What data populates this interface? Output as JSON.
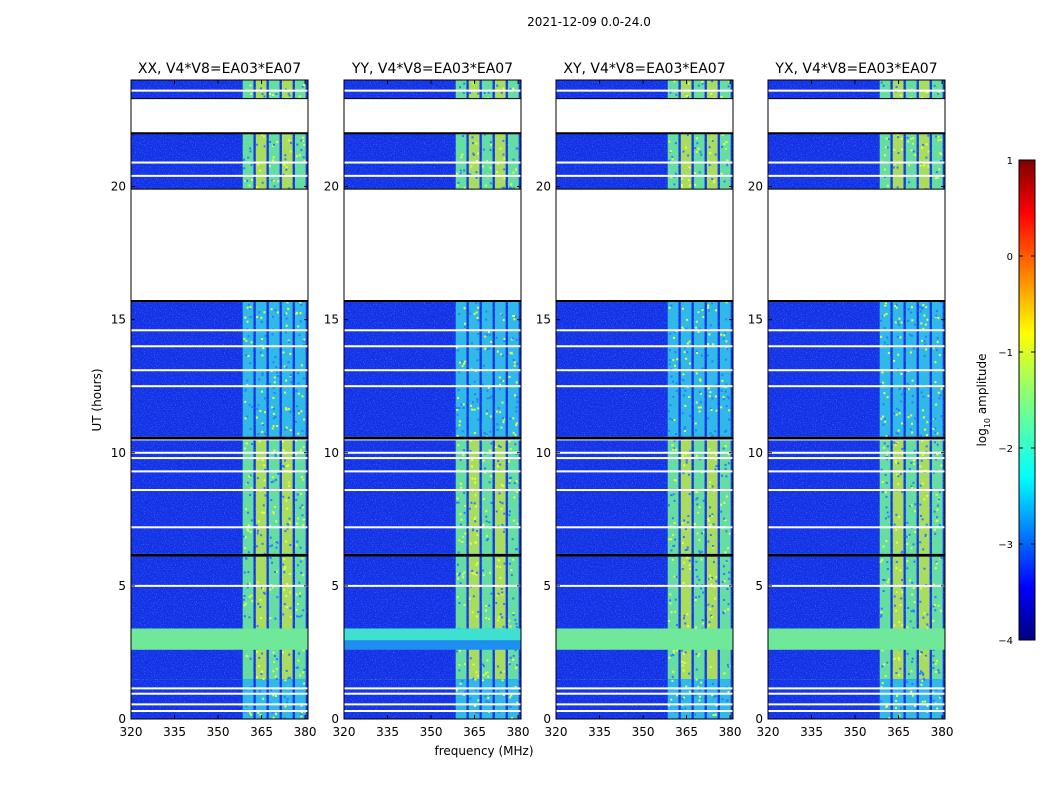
{
  "figure": {
    "suptitle": "2021-12-09 0.0-24.0"
  },
  "chart_data": {
    "type": "heatmap",
    "title": "2021-12-09 0.0-24.0",
    "xlabel": "frequency (MHz)",
    "ylabel": "UT (hours)",
    "xlim": [
      320,
      381
    ],
    "ylim": [
      0,
      24
    ],
    "x_ticks": [
      320,
      335,
      350,
      365,
      380
    ],
    "y_ticks": [
      0,
      5,
      10,
      15,
      20
    ],
    "x_tick_labels": [
      "320",
      "335",
      "350",
      "365",
      "380"
    ],
    "y_tick_labels": [
      "0",
      "5",
      "10",
      "15",
      "20"
    ],
    "panels": [
      {
        "name": "XX",
        "title": "XX, V4*V8=EA03*EA07",
        "signal_band_mhz": [
          358.5,
          377.5
        ]
      },
      {
        "name": "YY",
        "title": "YY, V4*V8=EA03*EA07",
        "signal_band_mhz": [
          358.5,
          378.5
        ]
      },
      {
        "name": "XY",
        "title": "XY, V4*V8=EA03*EA07",
        "signal_band_mhz": [
          358.5,
          377.5
        ]
      },
      {
        "name": "YX",
        "title": "YX, V4*V8=EA03*EA07",
        "signal_band_mhz": [
          358.5,
          377.5
        ]
      }
    ],
    "signal_channels_mhz": [
      358.5,
      363,
      367.5,
      372,
      376.5
    ],
    "data_blocks_ut": [
      [
        0.0,
        1.5
      ],
      [
        1.5,
        6.1
      ],
      [
        6.2,
        10.5
      ],
      [
        10.6,
        15.7
      ],
      [
        19.9,
        22.0
      ],
      [
        23.3,
        24.0
      ]
    ],
    "blank_gaps_ut": [
      [
        15.7,
        19.9
      ],
      [
        22.0,
        23.3
      ]
    ],
    "flagged_rows_ut": [
      0.3,
      0.55,
      0.95,
      1.15,
      5.0,
      7.2,
      8.6,
      9.3,
      9.8,
      10.0,
      10.5,
      12.5,
      13.1,
      14.0,
      14.6,
      20.4,
      20.9,
      23.6
    ],
    "rfi_band_ut": [
      2.6,
      3.4
    ],
    "colorbar": {
      "label": "log10 amplitude",
      "label_main": "log",
      "label_sub": "10",
      "label_tail": " amplitude",
      "range": [
        -4,
        1
      ],
      "ticks": [
        1,
        0,
        -1,
        -2,
        -3,
        -4
      ],
      "tick_labels": [
        "1",
        "0",
        "−1",
        "−2",
        "−3",
        "−4"
      ],
      "colormap": "jet",
      "stops": [
        "#00007f",
        "#0000ff",
        "#007fff",
        "#00ffff",
        "#7fff7f",
        "#ffff00",
        "#ff7f00",
        "#ff0000",
        "#7f0000"
      ]
    }
  }
}
